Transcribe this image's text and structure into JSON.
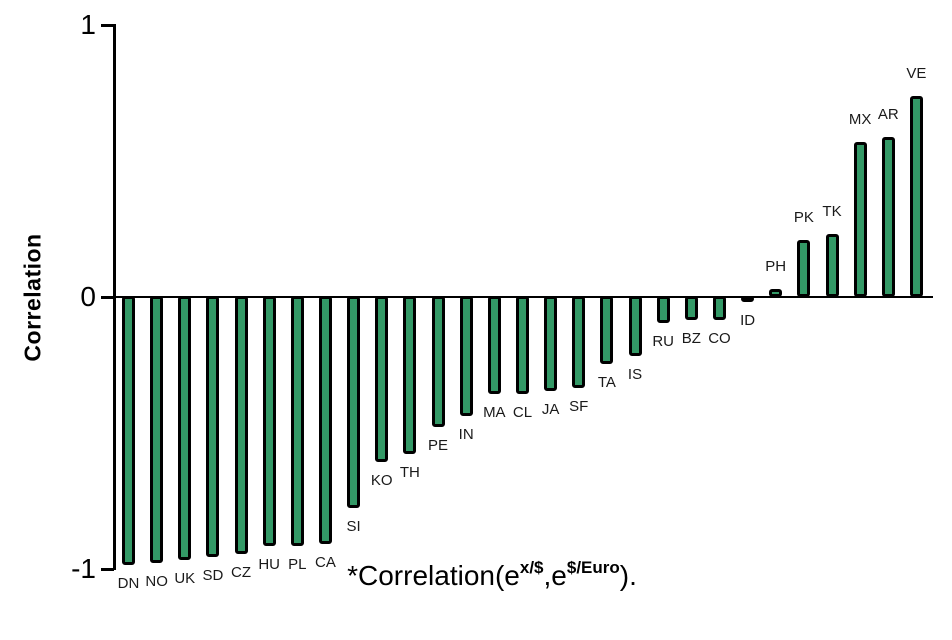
{
  "chart_data": {
    "type": "bar",
    "categories": [
      "DN",
      "NO",
      "UK",
      "SD",
      "CZ",
      "HU",
      "PL",
      "CA",
      "SI",
      "KO",
      "TH",
      "PE",
      "IN",
      "MA",
      "CL",
      "JA",
      "SF",
      "TA",
      "IS",
      "RU",
      "BZ",
      "CO",
      "ID",
      "PH",
      "PK",
      "TK",
      "MX",
      "AR",
      "VE"
    ],
    "values": [
      -0.99,
      -0.98,
      -0.97,
      -0.96,
      -0.95,
      -0.92,
      -0.92,
      -0.91,
      -0.78,
      -0.61,
      -0.58,
      -0.48,
      -0.44,
      -0.36,
      -0.36,
      -0.35,
      -0.34,
      -0.25,
      -0.22,
      -0.1,
      -0.09,
      -0.09,
      -0.02,
      0.03,
      0.21,
      0.23,
      0.57,
      0.59,
      0.74
    ],
    "title": "",
    "xlabel": "*Correlation(e^{x/$},e^{$/Euro}).",
    "ylabel": "Correlation",
    "ylim": [
      -1,
      1
    ],
    "yticks": [
      {
        "label": "1",
        "value": 1
      },
      {
        "label": "0",
        "value": 0
      },
      {
        "label": "-1",
        "value": -1
      }
    ],
    "grid": false,
    "legend": false,
    "bar_color": "#339966",
    "bar_outline": "#000000"
  },
  "caption": {
    "prefix": "*Correlation(e",
    "sup1": "x/$",
    "mid": ",e",
    "sup2": "$/Euro",
    "suffix": ")."
  }
}
